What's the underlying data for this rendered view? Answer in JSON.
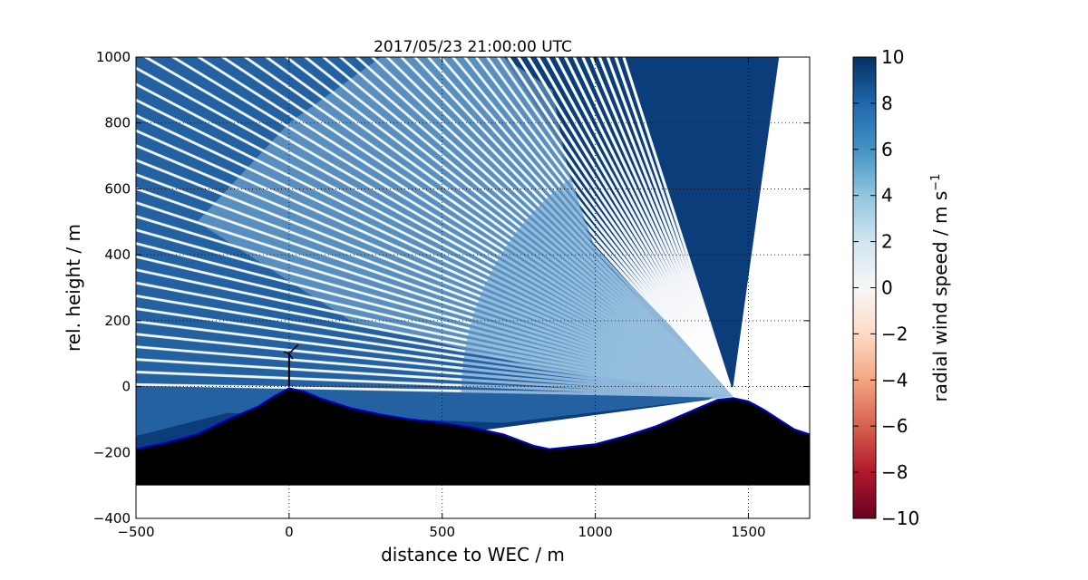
{
  "chart_data": {
    "type": "heatmap",
    "title": "2017/05/23 21:00:00 UTC",
    "xlabel": "distance to WEC / m",
    "ylabel": "rel. height / m",
    "xlim": [
      -500,
      1700
    ],
    "ylim": [
      -400,
      1000
    ],
    "xticks": [
      -500,
      0,
      500,
      1000,
      1500
    ],
    "yticks": [
      -400,
      -200,
      0,
      200,
      400,
      600,
      800,
      1000
    ],
    "grid": true,
    "colorbar": {
      "label": "radial wind speed / m s",
      "label_superscript": "−1",
      "range": [
        -10,
        10
      ],
      "ticks": [
        10,
        8,
        6,
        4,
        2,
        0,
        -2,
        -4,
        -6,
        -8,
        -10
      ],
      "colormap": "RdBu",
      "colors": [
        "#67001f",
        "#b2182b",
        "#d6604d",
        "#f4a582",
        "#fddbc7",
        "#f7f7f7",
        "#d1e5f0",
        "#92c5de",
        "#4393c3",
        "#2166ac",
        "#053061"
      ]
    },
    "lidar_origin": [
      1450,
      -30
    ],
    "scan_wedge": {
      "upper_edge_far_x": -500,
      "upper_edge_far_y": -195,
      "lower_edge": [
        [
          1370,
          -40
        ],
        [
          650,
          -130
        ]
      ],
      "top_edge": [
        [
          -500,
          1000
        ],
        [
          1600,
          1000
        ]
      ],
      "right_edge": [
        [
          1600,
          1000
        ],
        [
          1450,
          0
        ]
      ]
    },
    "wind_field_regions": [
      {
        "description": "light",
        "approx_value": 3
      },
      {
        "description": "medium",
        "approx_value": 6
      },
      {
        "description": "strong",
        "approx_value": 10
      }
    ],
    "terrain_profile": [
      [
        -500,
        -190
      ],
      [
        -400,
        -170
      ],
      [
        -300,
        -145
      ],
      [
        -200,
        -100
      ],
      [
        -100,
        -60
      ],
      [
        -50,
        -30
      ],
      [
        0,
        -5
      ],
      [
        50,
        -15
      ],
      [
        100,
        -35
      ],
      [
        200,
        -65
      ],
      [
        300,
        -85
      ],
      [
        400,
        -100
      ],
      [
        500,
        -110
      ],
      [
        600,
        -125
      ],
      [
        700,
        -145
      ],
      [
        800,
        -180
      ],
      [
        850,
        -190
      ],
      [
        900,
        -185
      ],
      [
        1000,
        -175
      ],
      [
        1100,
        -150
      ],
      [
        1200,
        -120
      ],
      [
        1300,
        -80
      ],
      [
        1400,
        -40
      ],
      [
        1450,
        -35
      ],
      [
        1500,
        -45
      ],
      [
        1550,
        -70
      ],
      [
        1600,
        -100
      ],
      [
        1650,
        -130
      ],
      [
        1700,
        -145
      ]
    ],
    "terrain_base_y": -300,
    "turbine": {
      "x": 0,
      "hub_height": 100
    }
  }
}
